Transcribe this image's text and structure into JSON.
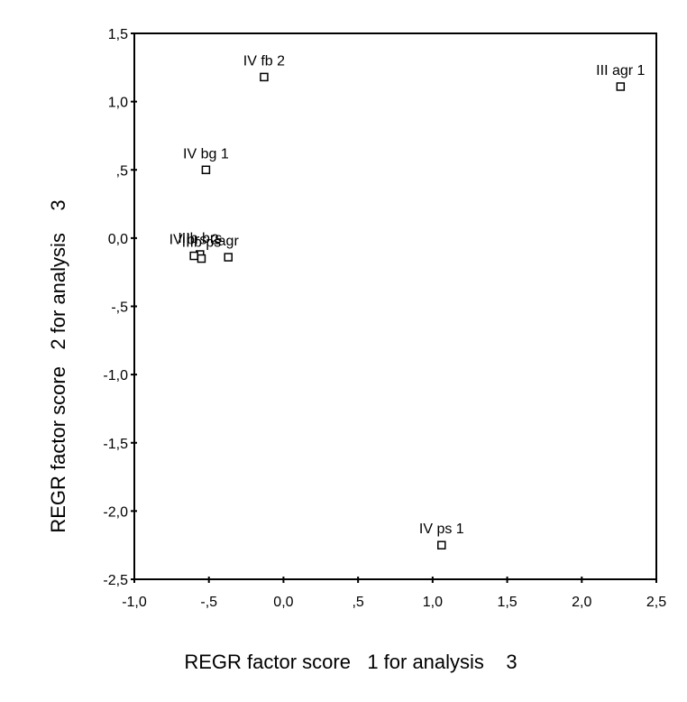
{
  "chart_data": {
    "type": "scatter",
    "xlabel": "REGR factor score   1 for analysis    3",
    "ylabel": "REGR factor score   2 for analysis    3",
    "xlim": [
      -1.0,
      2.5
    ],
    "ylim": [
      -2.5,
      1.5
    ],
    "x_ticks": [
      -1.0,
      -0.5,
      0.0,
      0.5,
      1.0,
      1.5,
      2.0,
      2.5
    ],
    "x_tick_labels": [
      "-1,0",
      "-,5",
      "0,0",
      ",5",
      "1,0",
      "1,5",
      "2,0",
      "2,5"
    ],
    "y_ticks": [
      1.5,
      1.0,
      0.5,
      0.0,
      -0.5,
      -1.0,
      -1.5,
      -2.0,
      -2.5
    ],
    "y_tick_labels": [
      "1,5",
      "1,0",
      ",5",
      "0,0",
      "-,5",
      "-1,0",
      "-1,5",
      "-2,0",
      "-2,5"
    ],
    "grid": false,
    "marker": "open-square",
    "colors": {
      "marker": "#000000",
      "axis": "#000000",
      "background": "#ffffff"
    },
    "points": [
      {
        "label": "IV fb 2",
        "x": -0.13,
        "y": 1.18
      },
      {
        "label": "III agr 1",
        "x": 2.26,
        "y": 1.11
      },
      {
        "label": "IV bg 1",
        "x": -0.52,
        "y": 0.5
      },
      {
        "label": "IIIb brs",
        "x": -0.56,
        "y": -0.12
      },
      {
        "label": "IV brs 2",
        "x": -0.6,
        "y": -0.13
      },
      {
        "label": "IIIb ps",
        "x": -0.55,
        "y": -0.15
      },
      {
        "label": "agr",
        "x": -0.37,
        "y": -0.14
      },
      {
        "label": "IV ps 1",
        "x": 1.06,
        "y": -2.25
      }
    ]
  }
}
